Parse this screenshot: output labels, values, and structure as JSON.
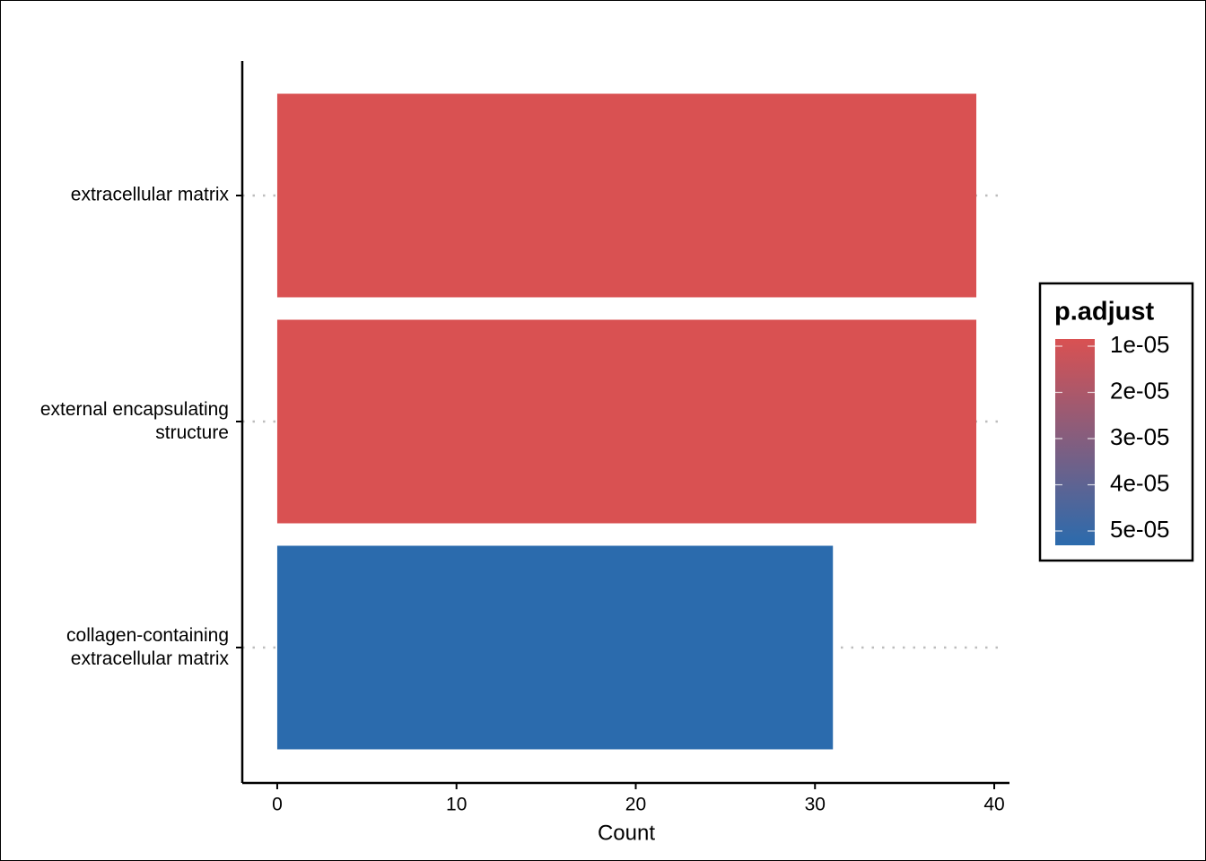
{
  "chart_data": {
    "type": "bar",
    "orientation": "horizontal",
    "xlabel": "Count",
    "categories": [
      "extracellular matrix",
      "external encapsulating\nstructure",
      "collagen-containing\nextracellular matrix"
    ],
    "values": [
      39,
      39,
      31
    ],
    "p_adjust": [
      8.5e-06,
      8.5e-06,
      5.3e-05
    ],
    "xlim": [
      -1.95,
      40.85
    ],
    "xticks": [
      0,
      10,
      20,
      30,
      40
    ],
    "grid": true,
    "legend": {
      "title": "p.adjust",
      "lim": [
        8.45e-06,
        5.31e-05
      ],
      "colors": [
        "#d95152",
        "#2b6bad"
      ],
      "ticks": [
        {
          "value": 1e-05,
          "label": "1e-05"
        },
        {
          "value": 2e-05,
          "label": "2e-05"
        },
        {
          "value": 3e-05,
          "label": "3e-05"
        },
        {
          "value": 4e-05,
          "label": "4e-05"
        },
        {
          "value": 5e-05,
          "label": "5e-05"
        }
      ]
    }
  }
}
